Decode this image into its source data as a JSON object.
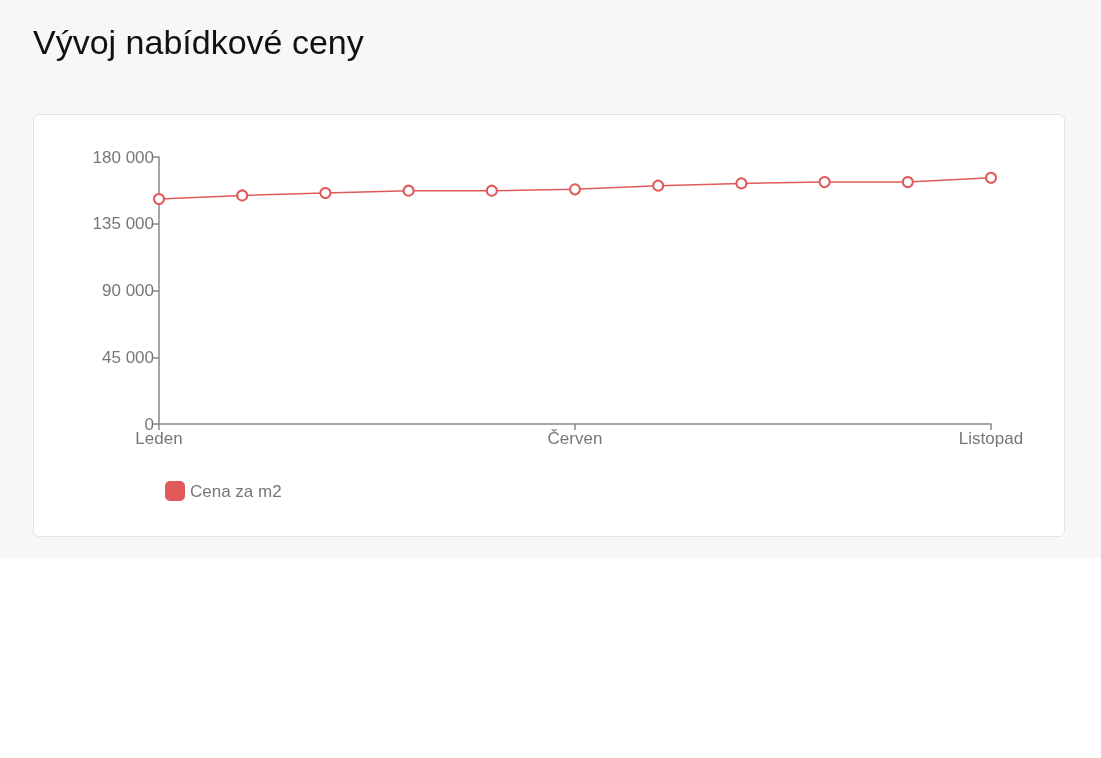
{
  "chart_data": {
    "type": "line",
    "title": "Vývoj nabídkové ceny",
    "categories": [
      "Leden",
      null,
      null,
      null,
      null,
      "Červen",
      null,
      null,
      null,
      null,
      "Listopad"
    ],
    "series": [
      {
        "name": "Cena za m2",
        "color": "#e05a5a",
        "values": [
          151700,
          154100,
          155700,
          157300,
          157300,
          158200,
          160700,
          162200,
          163100,
          163100,
          166000
        ]
      }
    ],
    "ylim": [
      0,
      180000
    ],
    "yticks": [
      0,
      {
        "value": 45000,
        "label": "45 000"
      },
      {
        "value": 90000,
        "label": "90 000"
      },
      {
        "value": 135000,
        "label": "135 000"
      },
      {
        "value": 180000,
        "label": "180 000"
      }
    ],
    "legend": "bottom left",
    "marker": "circle",
    "line_style": "solid"
  }
}
